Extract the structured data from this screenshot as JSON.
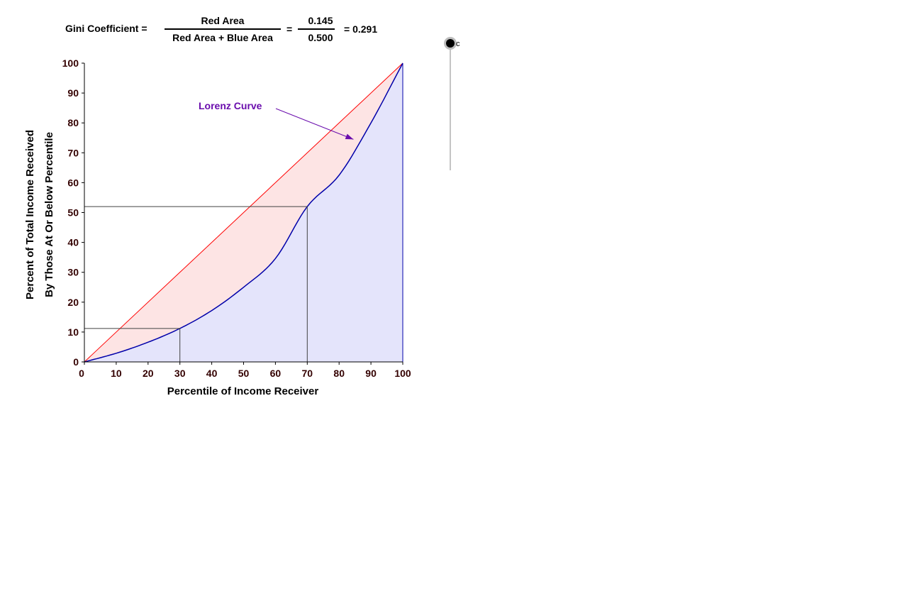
{
  "formula": {
    "lhs": "Gini Coefficient =",
    "numerator": "Red Area",
    "denominator": "Red Area + Blue Area",
    "equals": "=",
    "num_value": "0.145",
    "den_value": "0.500",
    "result": "= 0.291"
  },
  "slider": {
    "label": "c"
  },
  "colors": {
    "red_area": "#fde4e4",
    "blue_area": "#e4e4fb",
    "equality_line": "#ff0000",
    "lorenz_curve": "#0000aa",
    "annotation": "#6a0dad",
    "guide_lines": "#404040"
  },
  "chart_data": {
    "type": "area",
    "xlabel": "Percentile of Income Receiver",
    "ylabel_line1": "Percent of Total Income Received",
    "ylabel_line2": "By Those At Or Below Percentile",
    "xlim": [
      0,
      100
    ],
    "ylim": [
      0,
      100
    ],
    "x_ticks": [
      "0",
      "10",
      "20",
      "30",
      "40",
      "50",
      "60",
      "70",
      "80",
      "90",
      "100"
    ],
    "y_ticks": [
      "0",
      "10",
      "20",
      "30",
      "40",
      "50",
      "60",
      "70",
      "80",
      "90",
      "100"
    ],
    "lorenz_curve": {
      "x": [
        0,
        10,
        20,
        30,
        40,
        50,
        60,
        70,
        80,
        90,
        100
      ],
      "y": [
        0,
        2.9,
        6.6,
        11.2,
        17.2,
        25,
        34.6,
        52,
        62.5,
        80,
        100
      ]
    },
    "equality_line": {
      "x": [
        0,
        100
      ],
      "y": [
        0,
        100
      ]
    },
    "annotation": "Lorenz Curve",
    "annotation_target": {
      "x": 84.5,
      "y": 74.5
    },
    "guide_points": [
      {
        "x": 30,
        "y": 11.2
      },
      {
        "x": 70,
        "y": 52
      }
    ]
  }
}
